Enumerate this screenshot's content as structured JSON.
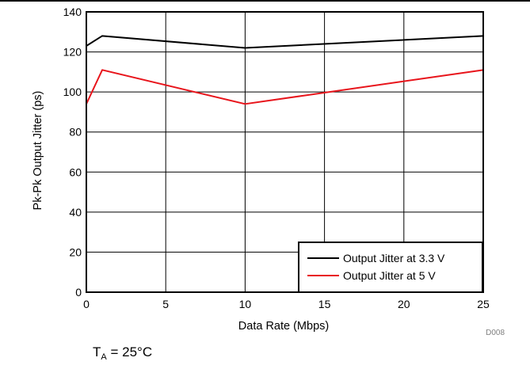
{
  "chart_data": {
    "type": "line",
    "xlabel": "Data Rate (Mbps)",
    "ylabel": "Pk-Pk Output Jitter (ps)",
    "xlim": [
      0,
      25
    ],
    "ylim": [
      0,
      140
    ],
    "xticks": [
      0,
      5,
      10,
      15,
      20,
      25
    ],
    "yticks": [
      0,
      20,
      40,
      60,
      80,
      100,
      120,
      140
    ],
    "grid": true,
    "legend_position": "bottom-right",
    "series": [
      {
        "name": "Output Jitter at 3.3 V",
        "color": "#000000",
        "x": [
          0,
          1,
          10,
          25
        ],
        "y": [
          123,
          128,
          122,
          128
        ]
      },
      {
        "name": "Output Jitter at 5 V",
        "color": "#e8141b",
        "x": [
          0,
          1,
          10,
          25
        ],
        "y": [
          94,
          111,
          94,
          111
        ]
      }
    ],
    "figure_code": "D008"
  },
  "note": {
    "prefix": "T",
    "subscript": "A",
    "suffix": " = 25°C"
  }
}
